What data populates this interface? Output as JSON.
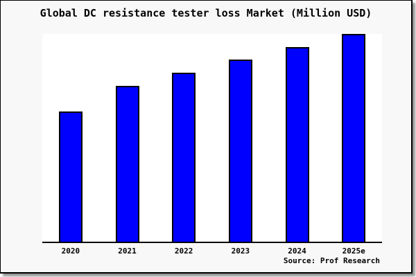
{
  "chart_data": {
    "type": "bar",
    "title": "Global DC resistance tester loss Market (Million USD)",
    "categories": [
      "2020",
      "2021",
      "2022",
      "2023",
      "2024",
      "2025e"
    ],
    "values": [
      62.7,
      75.0,
      81.3,
      87.7,
      93.7,
      100.0
    ],
    "values_note": "no y-axis ticks or gridlines visible; values estimated from bar heights, normalized to 2025e = 100",
    "xlabel": "",
    "ylabel": "",
    "ylim": [
      0,
      100
    ],
    "grid": false,
    "legend": false,
    "source": "Source: Prof Research"
  },
  "colors": {
    "figure_bg": "#f8f8f8",
    "plot_bg": "#ffffff",
    "bar_fill": "#0000ff",
    "bar_border": "#000000",
    "axis": "#000000",
    "text": "#000000"
  }
}
